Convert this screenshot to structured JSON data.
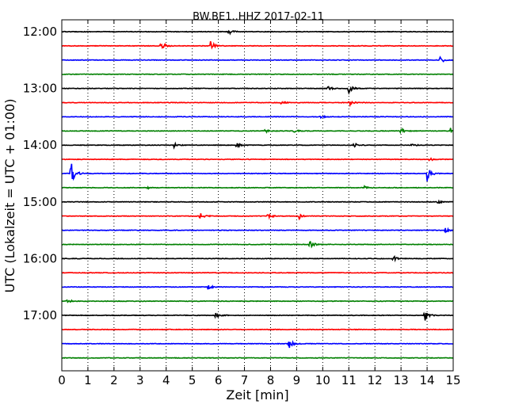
{
  "chart_data": {
    "type": "line",
    "title": "BW.BE1..HHZ 2017-02-11",
    "xlabel": "Zeit  [min]",
    "ylabel": "UTC (Lokalzeit = UTC + 01:00)",
    "xlim": [
      0,
      15
    ],
    "x_ticks": [
      "0",
      "1",
      "2",
      "3",
      "4",
      "5",
      "6",
      "7",
      "8",
      "9",
      "10",
      "11",
      "12",
      "13",
      "14",
      "15"
    ],
    "y_ticks": [
      {
        "row": 0,
        "label": "12:00"
      },
      {
        "row": 4,
        "label": "13:00"
      },
      {
        "row": 8,
        "label": "14:00"
      },
      {
        "row": 12,
        "label": "15:00"
      },
      {
        "row": 16,
        "label": "16:00"
      },
      {
        "row": 20,
        "label": "17:00"
      }
    ],
    "grid": "vertical dotted at each minute",
    "legend": "none",
    "color_cycle": [
      "#000000",
      "#ff0000",
      "#0000ff",
      "#008000"
    ],
    "traces": [
      {
        "start": "12:00",
        "events": [
          {
            "t": 6.4,
            "a": 0.5
          }
        ]
      },
      {
        "start": "12:15",
        "events": [
          {
            "t": 3.8,
            "a": 0.9
          },
          {
            "t": 5.7,
            "a": 0.9
          }
        ]
      },
      {
        "start": "12:30",
        "events": [
          {
            "t": 14.5,
            "a": 0.6
          }
        ]
      },
      {
        "start": "12:45",
        "events": []
      },
      {
        "start": "13:00",
        "events": [
          {
            "t": 10.2,
            "a": 0.5
          },
          {
            "t": 11.0,
            "a": 0.9
          }
        ]
      },
      {
        "start": "13:15",
        "events": [
          {
            "t": 8.4,
            "a": 0.3
          },
          {
            "t": 11.0,
            "a": 0.6
          }
        ]
      },
      {
        "start": "13:30",
        "events": [
          {
            "t": 9.9,
            "a": 0.3
          }
        ]
      },
      {
        "start": "13:45",
        "events": [
          {
            "t": 7.8,
            "a": 0.3
          },
          {
            "t": 8.9,
            "a": 0.3
          },
          {
            "t": 13.0,
            "a": 0.5
          },
          {
            "t": 14.9,
            "a": 0.5
          }
        ]
      },
      {
        "start": "14:00",
        "events": [
          {
            "t": 4.3,
            "a": 0.4
          },
          {
            "t": 6.7,
            "a": 0.5
          },
          {
            "t": 11.2,
            "a": 0.4
          },
          {
            "t": 13.4,
            "a": 0.3
          }
        ]
      },
      {
        "start": "14:15",
        "events": [
          {
            "t": 14.1,
            "a": 0.3
          }
        ]
      },
      {
        "start": "14:30",
        "events": [
          {
            "t": 0.35,
            "a": 2.4
          },
          {
            "t": 14.0,
            "a": 1.4
          }
        ]
      },
      {
        "start": "14:45",
        "events": [
          {
            "t": 3.3,
            "a": 0.2
          },
          {
            "t": 11.6,
            "a": 0.3
          }
        ]
      },
      {
        "start": "15:00",
        "events": [
          {
            "t": 14.4,
            "a": 0.3
          }
        ]
      },
      {
        "start": "15:15",
        "events": [
          {
            "t": 5.3,
            "a": 0.9
          },
          {
            "t": 7.9,
            "a": 0.5
          },
          {
            "t": 9.1,
            "a": 0.5
          }
        ]
      },
      {
        "start": "15:30",
        "events": [
          {
            "t": 14.7,
            "a": 0.4
          }
        ]
      },
      {
        "start": "15:45",
        "events": [
          {
            "t": 9.5,
            "a": 0.8
          }
        ]
      },
      {
        "start": "16:00",
        "events": [
          {
            "t": 12.7,
            "a": 0.5
          }
        ]
      },
      {
        "start": "16:15",
        "events": []
      },
      {
        "start": "16:30",
        "events": [
          {
            "t": 5.6,
            "a": 0.4
          }
        ]
      },
      {
        "start": "16:45",
        "events": [
          {
            "t": 0.2,
            "a": 0.4
          }
        ]
      },
      {
        "start": "17:00",
        "events": [
          {
            "t": 5.9,
            "a": 0.5
          },
          {
            "t": 13.9,
            "a": 1.2
          }
        ]
      },
      {
        "start": "17:15",
        "events": []
      },
      {
        "start": "17:30",
        "events": [
          {
            "t": 8.7,
            "a": 1.0
          }
        ]
      },
      {
        "start": "17:45",
        "events": []
      }
    ]
  }
}
